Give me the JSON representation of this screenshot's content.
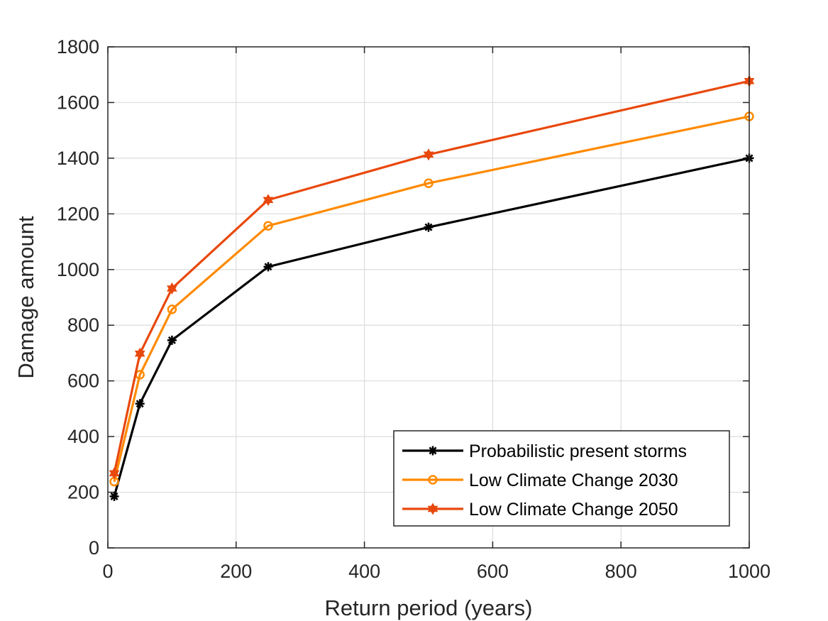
{
  "chart_data": {
    "type": "line",
    "xlabel": "Return period (years)",
    "ylabel": "Damage amount",
    "xlim": [
      0,
      1000
    ],
    "ylim": [
      0,
      1800
    ],
    "xticks": [
      0,
      200,
      400,
      600,
      800,
      1000
    ],
    "yticks": [
      0,
      200,
      400,
      600,
      800,
      1000,
      1200,
      1400,
      1600,
      1800
    ],
    "grid": true,
    "legend_position": "bottom-right",
    "x": [
      10,
      50,
      100,
      250,
      500,
      1000
    ],
    "series": [
      {
        "name": "Probabilistic present storms",
        "color": "#000000",
        "marker": "asterisk",
        "values": [
          185,
          518,
          746,
          1010,
          1152,
          1400
        ]
      },
      {
        "name": "Low Climate Change 2030",
        "color": "#ff8a00",
        "marker": "circle",
        "values": [
          238,
          622,
          857,
          1157,
          1310,
          1550
        ]
      },
      {
        "name": "Low Climate Change 2050",
        "color": "#e8480c",
        "marker": "hexagram",
        "values": [
          268,
          698,
          932,
          1250,
          1413,
          1677
        ]
      }
    ]
  }
}
